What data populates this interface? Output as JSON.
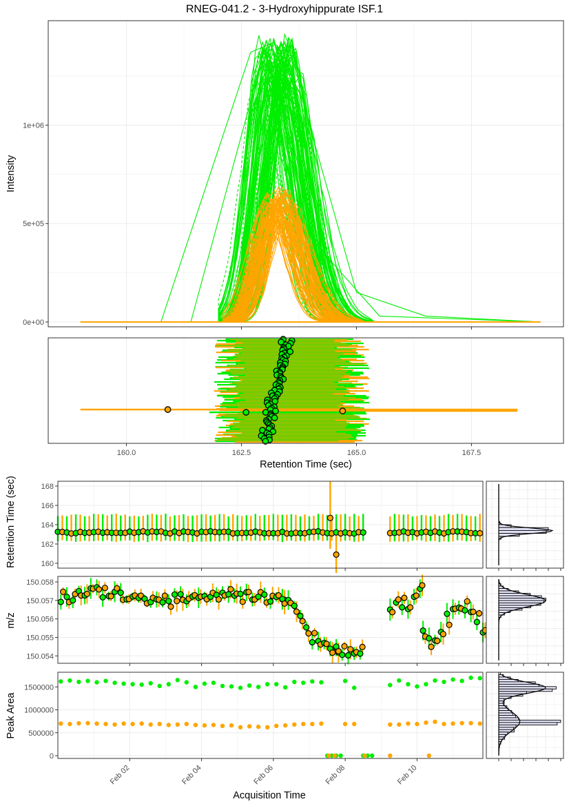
{
  "page_title": "RNEG-041.2 - 3-Hydroxyhippurate ISF.1",
  "colors": {
    "sample": "#00ee00",
    "qc": "#ffa500",
    "grid": "#ebebeb",
    "panel_border": "#333333",
    "point_outline": "#000000",
    "density_fill": "#e6e6fa"
  },
  "chart_data": [
    {
      "type": "line",
      "title": "RNEG-041.2 - 3-Hydroxyhippurate ISF.1",
      "xlabel": "",
      "ylabel": "Intensity",
      "xlim": [
        158.3,
        169.5
      ],
      "ylim": [
        0,
        1450000
      ],
      "y_ticks": [
        0,
        500000,
        1000000
      ],
      "y_tick_labels": [
        "0e+00",
        "5e+05",
        "1e+06"
      ],
      "grid": true,
      "series": [
        {
          "color": "#00ee00",
          "n_traces": 95,
          "apex_rt_range": [
            162.9,
            163.6
          ],
          "peak_height_range": [
            1150000,
            1430000
          ],
          "rt_window": [
            162.3,
            165.0
          ]
        },
        {
          "color": "#ffa500",
          "n_traces": 75,
          "apex_rt_range": [
            163.0,
            163.5
          ],
          "peak_height_range": [
            490000,
            670000
          ],
          "rt_window": [
            162.4,
            164.8
          ]
        }
      ],
      "wide_traces": [
        {
          "color": "#00ee00",
          "x": [
            159.0,
            160.75,
            162.7,
            163.2,
            163.8,
            165.0,
            166.5,
            169.0
          ],
          "y": [
            0,
            0,
            1370000,
            1420000,
            1150000,
            150000,
            30000,
            0
          ]
        },
        {
          "color": "#00ee00",
          "x": [
            159.0,
            161.4,
            163.0,
            163.4,
            164.1,
            165.5,
            169.0
          ],
          "y": [
            0,
            0,
            1380000,
            1280000,
            400000,
            30000,
            0
          ]
        }
      ]
    },
    {
      "type": "scatter",
      "xlabel": "Retention Time (sec)",
      "ylabel": "",
      "xlim": [
        158.3,
        169.5
      ],
      "x_ticks": [
        160.0,
        162.5,
        165.0,
        167.5
      ],
      "x_tick_labels": [
        "160.0",
        "162.5",
        "165.0",
        "167.5"
      ],
      "grid": true,
      "n_rows": 150,
      "apex_rt_range": [
        163.0,
        163.5
      ],
      "range_start_range": [
        161.9,
        162.6
      ],
      "range_end_range": [
        164.5,
        165.3
      ],
      "outliers": [
        {
          "color": "#ffa500",
          "apex": 160.9,
          "start": 159.0,
          "end": 168.5
        },
        {
          "color": "#ffa500",
          "apex": 164.7,
          "start": 162.5,
          "end": 168.5
        },
        {
          "color": "#00ee00",
          "apex": 162.6,
          "start": 161.8,
          "end": 165.2
        }
      ]
    },
    {
      "type": "scatter",
      "xlabel": "",
      "ylabel": "Retention Time (sec)",
      "ylim": [
        159.5,
        168.5
      ],
      "y_ticks": [
        160,
        162,
        164,
        166,
        168
      ],
      "y_tick_labels": [
        "160",
        "162",
        "164",
        "166",
        "168"
      ],
      "grid": true,
      "typical_apex": 163.2,
      "typical_range": [
        162.3,
        165.0
      ],
      "outliers": [
        {
          "color": "#ffa500",
          "date": "2025-02-07 14:00",
          "apex": 164.7,
          "range": [
            161.5,
            168.5
          ]
        },
        {
          "color": "#ffa500",
          "date": "2025-02-07 18:00",
          "apex": 160.9,
          "range": [
            159.0,
            163.5
          ]
        }
      ]
    },
    {
      "type": "scatter",
      "xlabel": "",
      "ylabel": "m/z",
      "ylim": [
        150.0536,
        150.0583
      ],
      "y_ticks": [
        150.054,
        150.055,
        150.056,
        150.057,
        150.058
      ],
      "y_tick_labels": [
        "150.054",
        "150.055",
        "150.056",
        "150.057",
        "150.058"
      ],
      "grid": true,
      "segments": [
        {
          "start": "2025-01-31 02:00",
          "end": "2025-02-06 06:00",
          "mz": [
            150.0572,
            150.0575,
            150.0572,
            150.057,
            150.0572,
            150.0573,
            150.0571,
            150.057
          ]
        },
        {
          "start": "2025-02-06 06:00",
          "end": "2025-02-07 18:00",
          "mz": [
            150.057,
            150.0564,
            150.0552,
            150.0547,
            150.0543
          ]
        },
        {
          "start": "2025-02-07 18:00",
          "end": "2025-02-08 12:00",
          "mz": [
            150.0543,
            150.0544
          ]
        },
        {
          "start": "2025-02-09 06:00",
          "end": "2025-02-10 04:00",
          "mz": [
            150.0566,
            150.0572,
            150.0563,
            150.0574,
            150.058
          ]
        },
        {
          "start": "2025-02-10 04:00",
          "end": "2025-02-11 22:00",
          "mz": [
            150.0552,
            150.0545,
            150.0556,
            150.0566,
            150.0568,
            150.056,
            150.0552
          ]
        }
      ]
    },
    {
      "type": "scatter",
      "xlabel": "Acquisition Time",
      "ylabel": "Peak Area",
      "ylim": [
        -60000,
        1820000
      ],
      "y_ticks": [
        0,
        500000,
        1000000,
        1500000
      ],
      "y_tick_labels": [
        "0",
        "500000",
        "1000000",
        "1500000"
      ],
      "x_ticks": [
        "2025-02-02",
        "2025-02-04",
        "2025-02-06",
        "2025-02-08",
        "2025-02-10"
      ],
      "x_tick_labels": [
        "Feb 02",
        "Feb 04",
        "Feb 06",
        "Feb 08",
        "Feb 10"
      ],
      "xlim": [
        "2025-01-31 00:00",
        "2025-02-11 20:00"
      ],
      "grid": true,
      "series": [
        {
          "color": "#00ee00",
          "name": "",
          "dates": [
            "2025-01-31 02:00",
            "2025-01-31 08:00",
            "2025-01-31 14:00",
            "2025-01-31 20:00",
            "2025-02-01 02:00",
            "2025-02-01 08:00",
            "2025-02-01 14:00",
            "2025-02-01 20:00",
            "2025-02-02 02:00",
            "2025-02-02 08:00",
            "2025-02-02 14:00",
            "2025-02-02 20:00",
            "2025-02-03 02:00",
            "2025-02-03 08:00",
            "2025-02-03 14:00",
            "2025-02-03 20:00",
            "2025-02-04 02:00",
            "2025-02-04 08:00",
            "2025-02-04 14:00",
            "2025-02-04 20:00",
            "2025-02-05 02:00",
            "2025-02-05 08:00",
            "2025-02-05 14:00",
            "2025-02-05 20:00",
            "2025-02-06 02:00",
            "2025-02-06 08:00",
            "2025-02-06 14:00",
            "2025-02-06 20:00",
            "2025-02-07 02:00",
            "2025-02-07 08:00",
            "2025-02-08 00:00",
            "2025-02-08 06:00",
            "2025-02-09 06:00",
            "2025-02-09 12:00",
            "2025-02-09 18:00",
            "2025-02-10 00:00",
            "2025-02-10 06:00",
            "2025-02-10 12:00",
            "2025-02-10 18:00",
            "2025-02-11 00:00",
            "2025-02-11 06:00",
            "2025-02-11 12:00",
            "2025-02-11 18:00"
          ],
          "values": [
            1620000,
            1640000,
            1610000,
            1630000,
            1600000,
            1630000,
            1590000,
            1570000,
            1560000,
            1550000,
            1580000,
            1520000,
            1560000,
            1650000,
            1600000,
            1500000,
            1570000,
            1590000,
            1520000,
            1510000,
            1480000,
            1530000,
            1500000,
            1560000,
            1560000,
            1490000,
            1610000,
            1590000,
            1620000,
            1600000,
            1630000,
            1480000,
            1540000,
            1640000,
            1560000,
            1510000,
            1560000,
            1640000,
            1610000,
            1660000,
            1630000,
            1700000,
            1690000
          ]
        },
        {
          "color": "#ffa500",
          "name": "",
          "dates": [
            "2025-01-31 02:00",
            "2025-01-31 08:00",
            "2025-01-31 14:00",
            "2025-01-31 20:00",
            "2025-02-01 02:00",
            "2025-02-01 08:00",
            "2025-02-01 14:00",
            "2025-02-01 20:00",
            "2025-02-02 02:00",
            "2025-02-02 08:00",
            "2025-02-02 14:00",
            "2025-02-02 20:00",
            "2025-02-03 02:00",
            "2025-02-03 08:00",
            "2025-02-03 14:00",
            "2025-02-03 20:00",
            "2025-02-04 02:00",
            "2025-02-04 08:00",
            "2025-02-04 14:00",
            "2025-02-04 20:00",
            "2025-02-05 02:00",
            "2025-02-05 08:00",
            "2025-02-05 14:00",
            "2025-02-05 20:00",
            "2025-02-06 02:00",
            "2025-02-06 08:00",
            "2025-02-06 14:00",
            "2025-02-06 20:00",
            "2025-02-07 02:00",
            "2025-02-07 08:00",
            "2025-02-08 00:00",
            "2025-02-08 06:00",
            "2025-02-09 06:00",
            "2025-02-09 12:00",
            "2025-02-09 18:00",
            "2025-02-10 00:00",
            "2025-02-10 06:00",
            "2025-02-10 12:00",
            "2025-02-10 18:00",
            "2025-02-11 00:00",
            "2025-02-11 06:00",
            "2025-02-11 12:00",
            "2025-02-11 18:00"
          ],
          "values": [
            700000,
            690000,
            705000,
            710000,
            700000,
            690000,
            680000,
            700000,
            690000,
            700000,
            680000,
            690000,
            670000,
            680000,
            690000,
            670000,
            660000,
            670000,
            650000,
            660000,
            620000,
            640000,
            630000,
            620000,
            650000,
            660000,
            680000,
            690000,
            690000,
            700000,
            690000,
            690000,
            680000,
            680000,
            700000,
            690000,
            720000,
            740000,
            690000,
            700000,
            710000,
            710000,
            700000
          ]
        },
        {
          "color": "#00ee00",
          "name": "",
          "dates": [
            "2025-02-07 12:00",
            "2025-02-07 15:00",
            "2025-02-07 18:00",
            "2025-02-07 21:00",
            "2025-02-08 12:00",
            "2025-02-08 15:00",
            "2025-02-08 18:00"
          ],
          "values": [
            0,
            0,
            0,
            0,
            0,
            0,
            0
          ]
        },
        {
          "color": "#ffa500",
          "name": "",
          "dates": [
            "2025-02-07 13:00",
            "2025-02-07 17:00",
            "2025-02-08 13:00",
            "2025-02-09 06:00",
            "2025-02-10 08:00"
          ],
          "values": [
            0,
            0,
            0,
            0,
            0
          ]
        }
      ],
      "marginal_histogram": {
        "rows": 3,
        "modes": [
          {
            "panel": "Retention Time (sec)",
            "center": 163.2
          },
          {
            "panel": "m/z",
            "center": 150.0572
          },
          {
            "panel": "Peak Area",
            "centers": [
              680000,
              1600000
            ]
          }
        ]
      }
    }
  ]
}
